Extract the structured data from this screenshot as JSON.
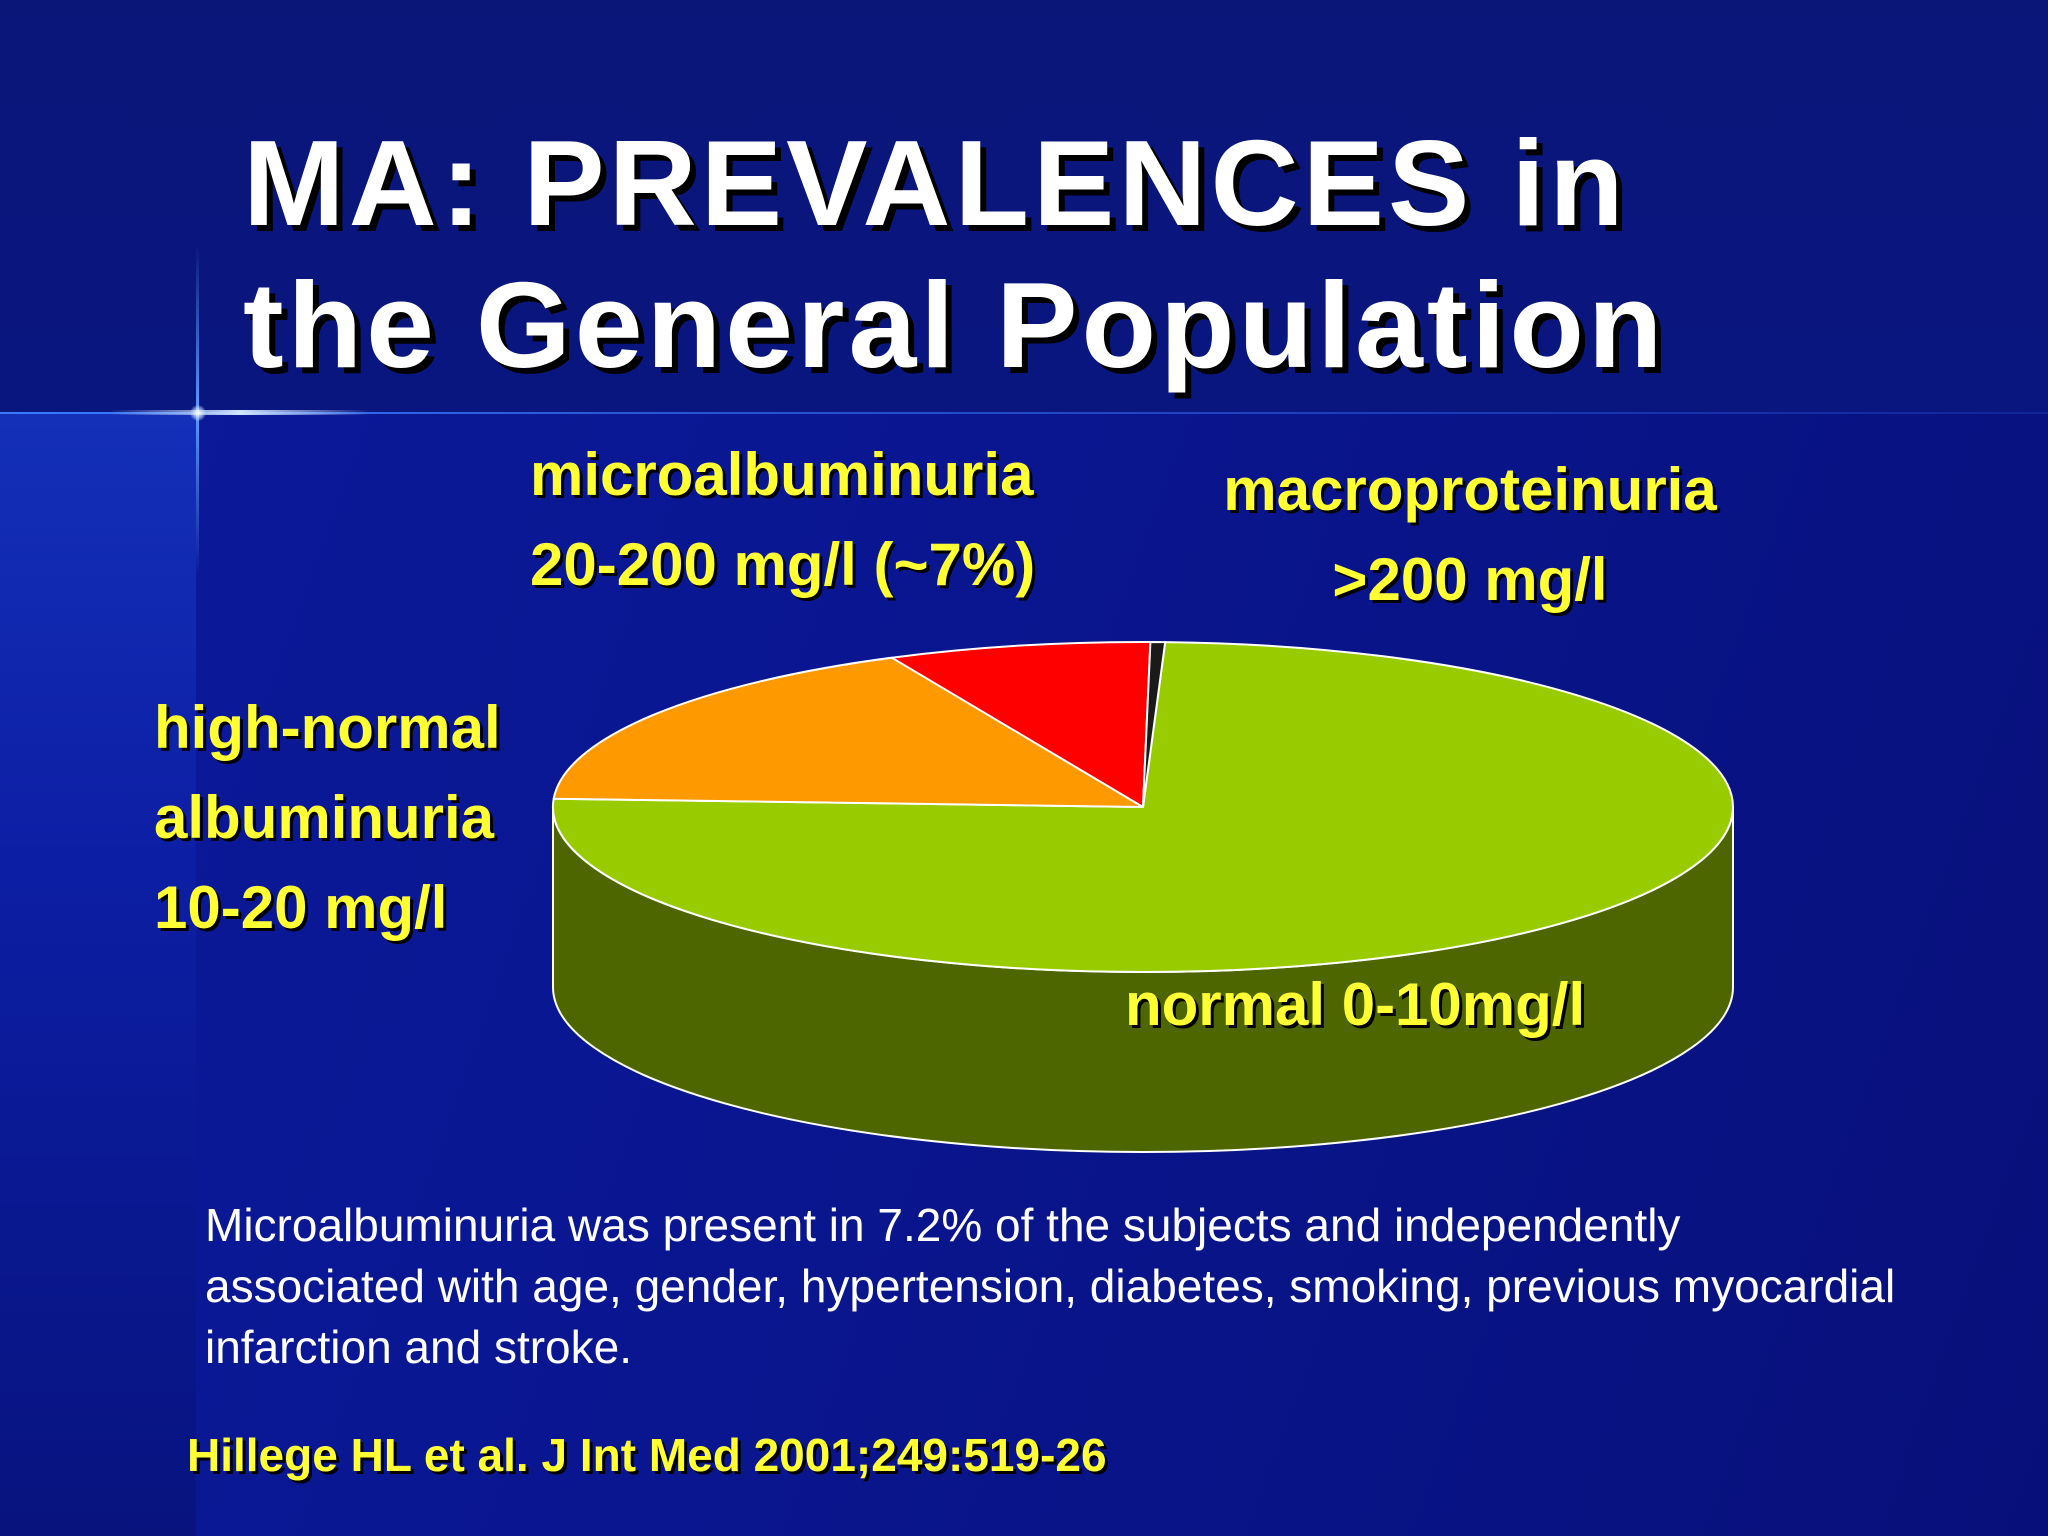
{
  "slide": {
    "title_line1": "MA: PREVALENCES in",
    "title_line2": "the General Population",
    "body_text": "Microalbuminuria was present in 7.2% of the subjects and independently associated with age, gender, hypertension, diabetes, smoking, previous myocardial infarction and stroke.",
    "citation": "Hillege HL et al. J Int Med 2001;249:519-26"
  },
  "labels": {
    "micro_line1": "microalbuminuria",
    "micro_line2": "20-200 mg/l (~7%)",
    "macro_line1": "macroproteinuria",
    "macro_line2": ">200 mg/l",
    "high_line1": "high-normal",
    "high_line2": "albuminuria",
    "high_line3": "10-20 mg/l",
    "normal": "normal 0-10mg/l"
  },
  "chart_data": {
    "type": "pie",
    "style": "3d",
    "slices": [
      {
        "label": "normal 0-10mg/l",
        "value": 75.2,
        "color": "#99cc00",
        "side_color": "#4d6600"
      },
      {
        "label": "high-normal albuminuria 10-20 mg/l",
        "value": 17.2,
        "color": "#ff9900",
        "side_color": "#804d00"
      },
      {
        "label": "microalbuminuria 20-200 mg/l (~7%)",
        "value": 7.2,
        "color": "#ff0000",
        "side_color": "#800000"
      },
      {
        "label": "macroproteinuria >200 mg/l",
        "value": 0.4,
        "color": "#1a1a1a",
        "side_color": "#000000"
      }
    ]
  },
  "colors": {
    "background": "#0a1690",
    "title": "#ffffff",
    "label": "#ffff33"
  }
}
